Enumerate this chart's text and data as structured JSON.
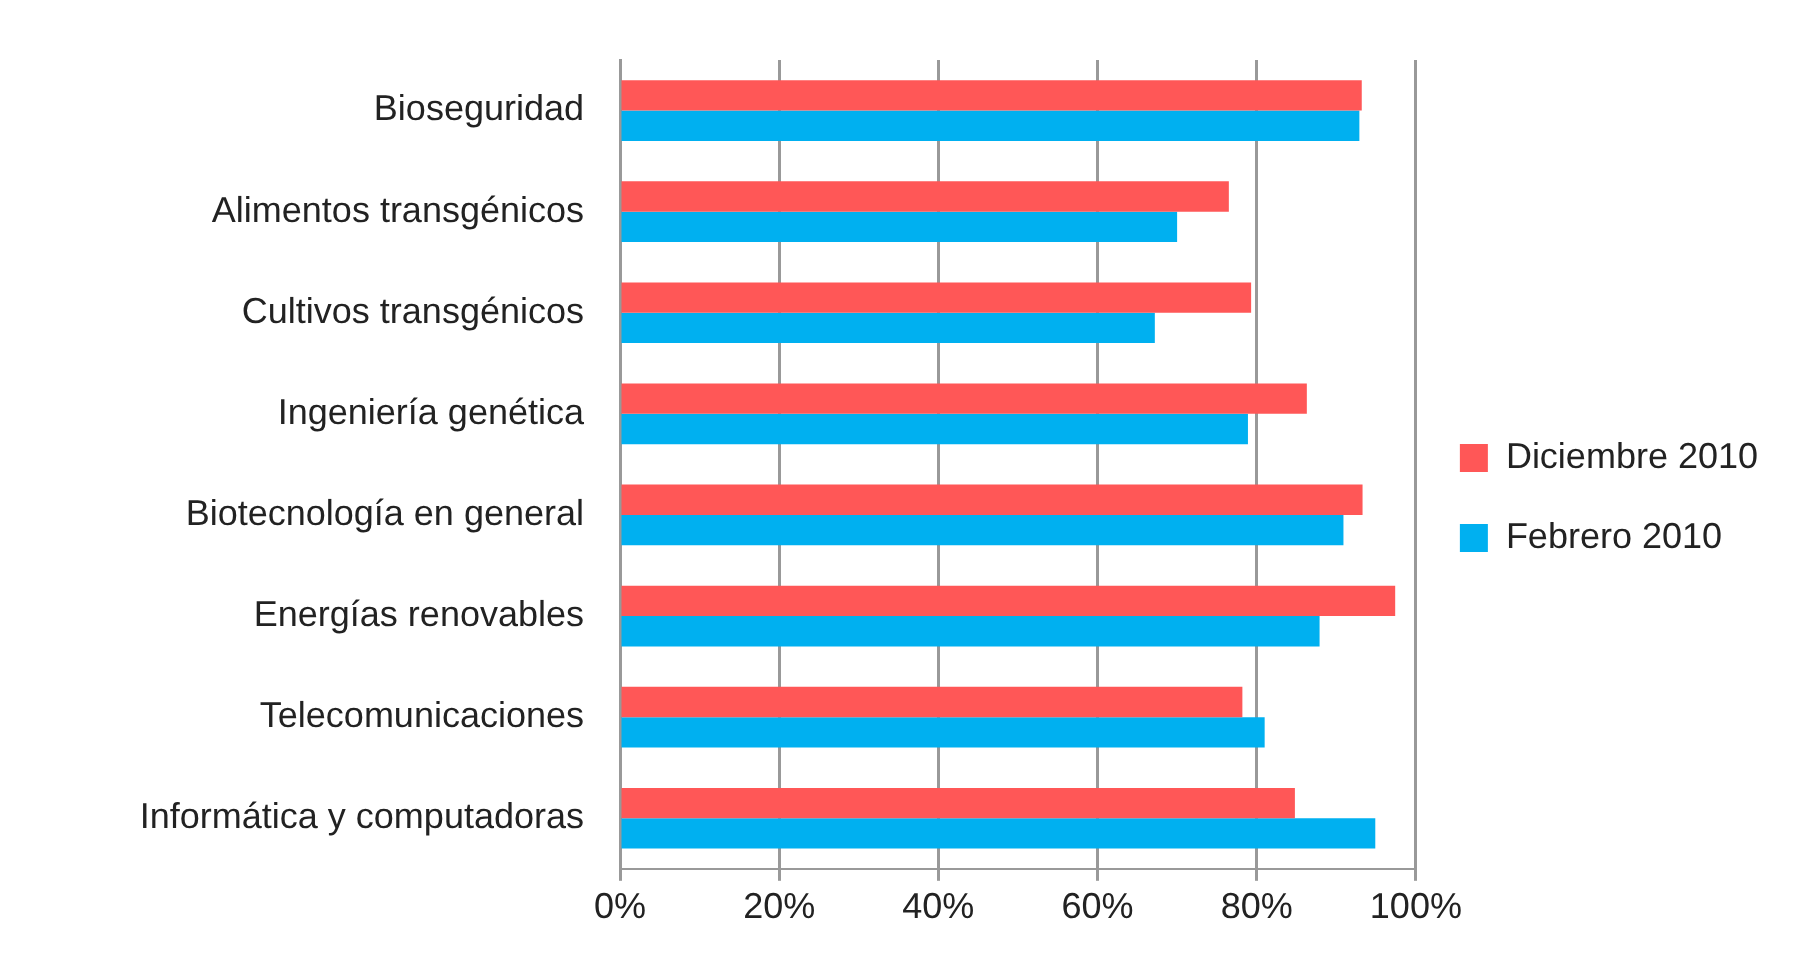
{
  "chart_data": {
    "type": "bar",
    "orientation": "horizontal",
    "categories": [
      "Bioseguridad",
      "Alimentos transgénicos",
      "Cultivos transgénicos",
      "Ingeniería genética",
      "Biotecnología en general",
      "Energías renovables",
      "Telecomunicaciones",
      "Informática y computadoras"
    ],
    "series": [
      {
        "name": "Diciembre 2010",
        "color": "#ff5757",
        "values": [
          93.2,
          76.5,
          79.3,
          86.3,
          93.3,
          97.4,
          78.2,
          84.8
        ]
      },
      {
        "name": "Febrero 2010",
        "color": "#00b0f0",
        "values": [
          92.9,
          70,
          67.2,
          78.9,
          90.9,
          87.9,
          81,
          94.9
        ]
      }
    ],
    "xlim": [
      0,
      100
    ],
    "xticks": [
      {
        "value": 0,
        "label": "0%"
      },
      {
        "value": 20,
        "label": "20%"
      },
      {
        "value": 40,
        "label": "40%"
      },
      {
        "value": 60,
        "label": "60%"
      },
      {
        "value": 80,
        "label": "80%"
      },
      {
        "value": 100,
        "label": "100%"
      }
    ],
    "grid": "x",
    "legend": "right"
  }
}
